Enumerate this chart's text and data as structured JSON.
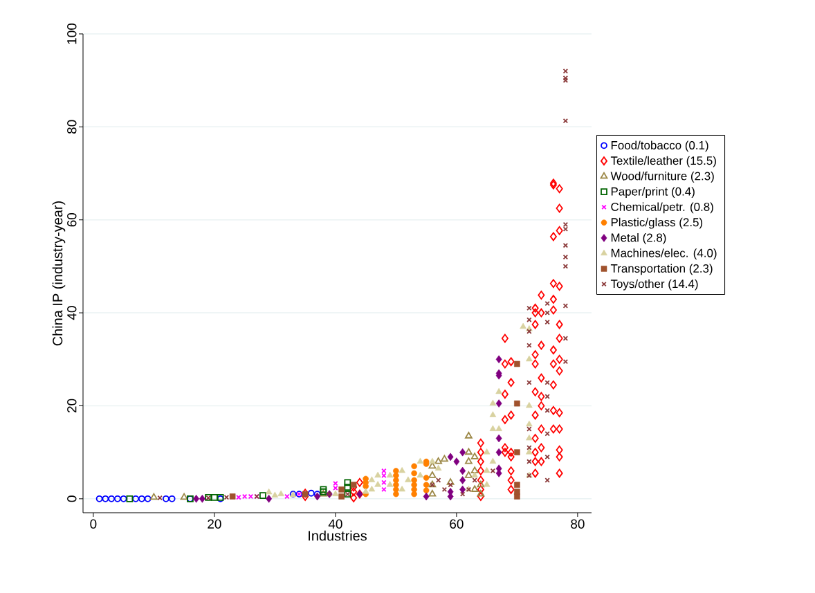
{
  "chart_data": {
    "type": "scatter",
    "xlabel": "Industries",
    "ylabel": "China IP (industry-year)",
    "xlim": [
      -1.7,
      82.3
    ],
    "ylim": [
      -3,
      100
    ],
    "xticks": [
      0,
      20,
      40,
      60,
      80
    ],
    "yticks": [
      0,
      20,
      40,
      60,
      80,
      100
    ],
    "grid": "y",
    "legend": "right",
    "series": [
      {
        "name": "Food/tobacco (0.1)",
        "color": "#0000ff",
        "marker": "circle",
        "x": [
          1,
          2,
          3,
          4,
          5,
          7,
          8,
          9,
          12,
          13,
          16,
          21,
          33,
          34,
          36,
          37
        ],
        "values": [
          0,
          0,
          0,
          0,
          0,
          0,
          0,
          0,
          0,
          0,
          0,
          0,
          1,
          1,
          1.2,
          1
        ]
      },
      {
        "name": "Textile/leather (15.5)",
        "color": "#ff0000",
        "marker": "diamond",
        "x": [
          35,
          35,
          43,
          43,
          43,
          44,
          44,
          64,
          64,
          64,
          64,
          64,
          64,
          64,
          68,
          68,
          68,
          68,
          68,
          68,
          69,
          69,
          69,
          69,
          69,
          69,
          69,
          69,
          73,
          73,
          73,
          73,
          73,
          73,
          73,
          73,
          73,
          73,
          73,
          74,
          74,
          74,
          74,
          74,
          74,
          74,
          74,
          74,
          76,
          76,
          76,
          76,
          76,
          76,
          76,
          76,
          76,
          76,
          76,
          77,
          77,
          77,
          77,
          77,
          77,
          77,
          77,
          77,
          77,
          77,
          77,
          77
        ],
        "values": [
          0.5,
          1.2,
          0.2,
          1.5,
          2.5,
          1,
          3.5,
          0.5,
          2,
          4,
          6,
          8,
          10,
          12,
          10,
          11,
          17,
          22.5,
          29,
          34.5,
          2,
          4,
          6,
          9,
          10,
          18,
          25,
          29.5,
          5.5,
          8,
          10,
          13,
          18,
          23,
          29,
          31,
          37.5,
          40,
          41,
          8,
          11,
          15,
          20,
          22,
          26,
          33,
          40,
          43.8,
          15,
          19,
          24.5,
          29,
          32,
          40.6,
          42.9,
          46.3,
          56.4,
          67.9,
          67.5,
          5.5,
          9,
          10.5,
          15,
          18.5,
          27.5,
          30,
          34.5,
          37.5,
          45.7,
          57.7,
          62.5,
          66.7
        ]
      },
      {
        "name": "Wood/furniture (2.3)",
        "color": "#9c8847",
        "marker": "triangle",
        "x": [
          10,
          15,
          38,
          56,
          56,
          56,
          56,
          57,
          58,
          59,
          62,
          62,
          62,
          62,
          63,
          63,
          63,
          64,
          64
        ],
        "values": [
          0.3,
          0.3,
          1,
          1,
          3,
          5,
          7,
          8,
          8.5,
          3.5,
          13.5,
          10,
          8,
          5,
          2,
          6,
          9,
          1,
          3
        ]
      },
      {
        "name": "Paper/print (0.4)",
        "color": "#006400",
        "marker": "square",
        "x": [
          6,
          16,
          19,
          20,
          21,
          28,
          38,
          38,
          42,
          42,
          42
        ],
        "values": [
          0,
          0,
          0.3,
          0.3,
          0.3,
          0.7,
          1.5,
          2,
          3.5,
          1,
          2.5
        ]
      },
      {
        "name": "Chemical/petr. (0.8)",
        "color": "#ff00ff",
        "marker": "cross",
        "x": [
          24,
          25,
          26,
          27,
          32,
          34,
          40,
          40,
          48,
          48,
          48,
          48
        ],
        "values": [
          0.3,
          0.5,
          0.5,
          0.5,
          0.5,
          1,
          2.3,
          3.3,
          2,
          3.5,
          5,
          6
        ]
      },
      {
        "name": "Plastic/glass (2.5)",
        "color": "#ff8000",
        "marker": "circle",
        "x": [
          45,
          45,
          45,
          45,
          50,
          50,
          50,
          50,
          50,
          50,
          53,
          53,
          53,
          53,
          53,
          53,
          55,
          55,
          55,
          55,
          55
        ],
        "values": [
          1,
          2.7,
          3.5,
          4.3,
          1,
          2,
          3,
          4,
          5,
          6,
          1,
          2,
          3,
          4,
          5.5,
          7,
          1.8,
          3,
          4.5,
          7.5,
          8
        ]
      },
      {
        "name": "Metal (2.8)",
        "color": "#800080",
        "marker": "diamond",
        "x": [
          17,
          18,
          29,
          37,
          39,
          44,
          55,
          59,
          59,
          59,
          60,
          61,
          61,
          61,
          61,
          67,
          67,
          67,
          67,
          67,
          67,
          67,
          67
        ],
        "values": [
          0,
          0,
          0,
          0.5,
          1,
          1,
          0.5,
          0.5,
          1.5,
          9,
          8,
          2,
          4,
          6,
          10,
          5.5,
          6.5,
          10,
          13,
          20.5,
          26.5,
          27,
          30
        ]
      },
      {
        "name": "Machines/elec. (4.0)",
        "color": "#d8d2a0",
        "marker": "triangle",
        "x": [
          29,
          30,
          31,
          33,
          40,
          45,
          46,
          46,
          47,
          47,
          49,
          49,
          51,
          51,
          52,
          54,
          54,
          56,
          57,
          62,
          63,
          65,
          65,
          65,
          66,
          66,
          66,
          66,
          67,
          67,
          72,
          72,
          72,
          72,
          72,
          72,
          72,
          71
        ],
        "values": [
          1.4,
          0.7,
          1,
          0.8,
          1,
          1.5,
          2,
          4,
          3,
          5,
          3,
          5,
          2,
          6,
          4,
          5,
          8,
          8,
          6.5,
          2,
          5,
          3,
          6,
          10,
          8,
          15,
          18,
          20.5,
          15,
          23,
          5,
          10,
          13,
          16,
          20,
          30,
          36.5,
          37
        ]
      },
      {
        "name": "Transportation (2.3)",
        "color": "#a0522d",
        "marker": "square",
        "x": [
          23,
          35,
          41,
          41,
          43,
          70,
          70,
          70,
          70,
          70,
          70
        ],
        "values": [
          0.5,
          1,
          2,
          0.5,
          3,
          0.5,
          1.5,
          3,
          10,
          20.5,
          29
        ]
      },
      {
        "name": "Toys/other (14.4)",
        "color": "#8b3a3a",
        "marker": "cross",
        "x": [
          11,
          19,
          22,
          27,
          39,
          42,
          56,
          57,
          58,
          59,
          61,
          62,
          63,
          66,
          72,
          72,
          72,
          72,
          72,
          72,
          72,
          72,
          72,
          75,
          75,
          75,
          75,
          75,
          75,
          75,
          75,
          75,
          78,
          78,
          78,
          78,
          78,
          78,
          78,
          78,
          78,
          78,
          78,
          78
        ],
        "values": [
          0.2,
          0.2,
          0.3,
          0.5,
          1,
          1,
          3,
          4,
          2,
          3,
          1,
          2,
          4,
          6,
          5,
          8,
          11,
          15,
          25,
          33,
          36,
          38.5,
          41,
          4,
          9,
          14,
          19,
          22,
          25,
          38,
          40,
          42,
          29.5,
          34.5,
          41.5,
          50,
          52,
          54.5,
          58,
          59,
          81.3,
          90,
          90.5,
          92
        ]
      }
    ]
  }
}
